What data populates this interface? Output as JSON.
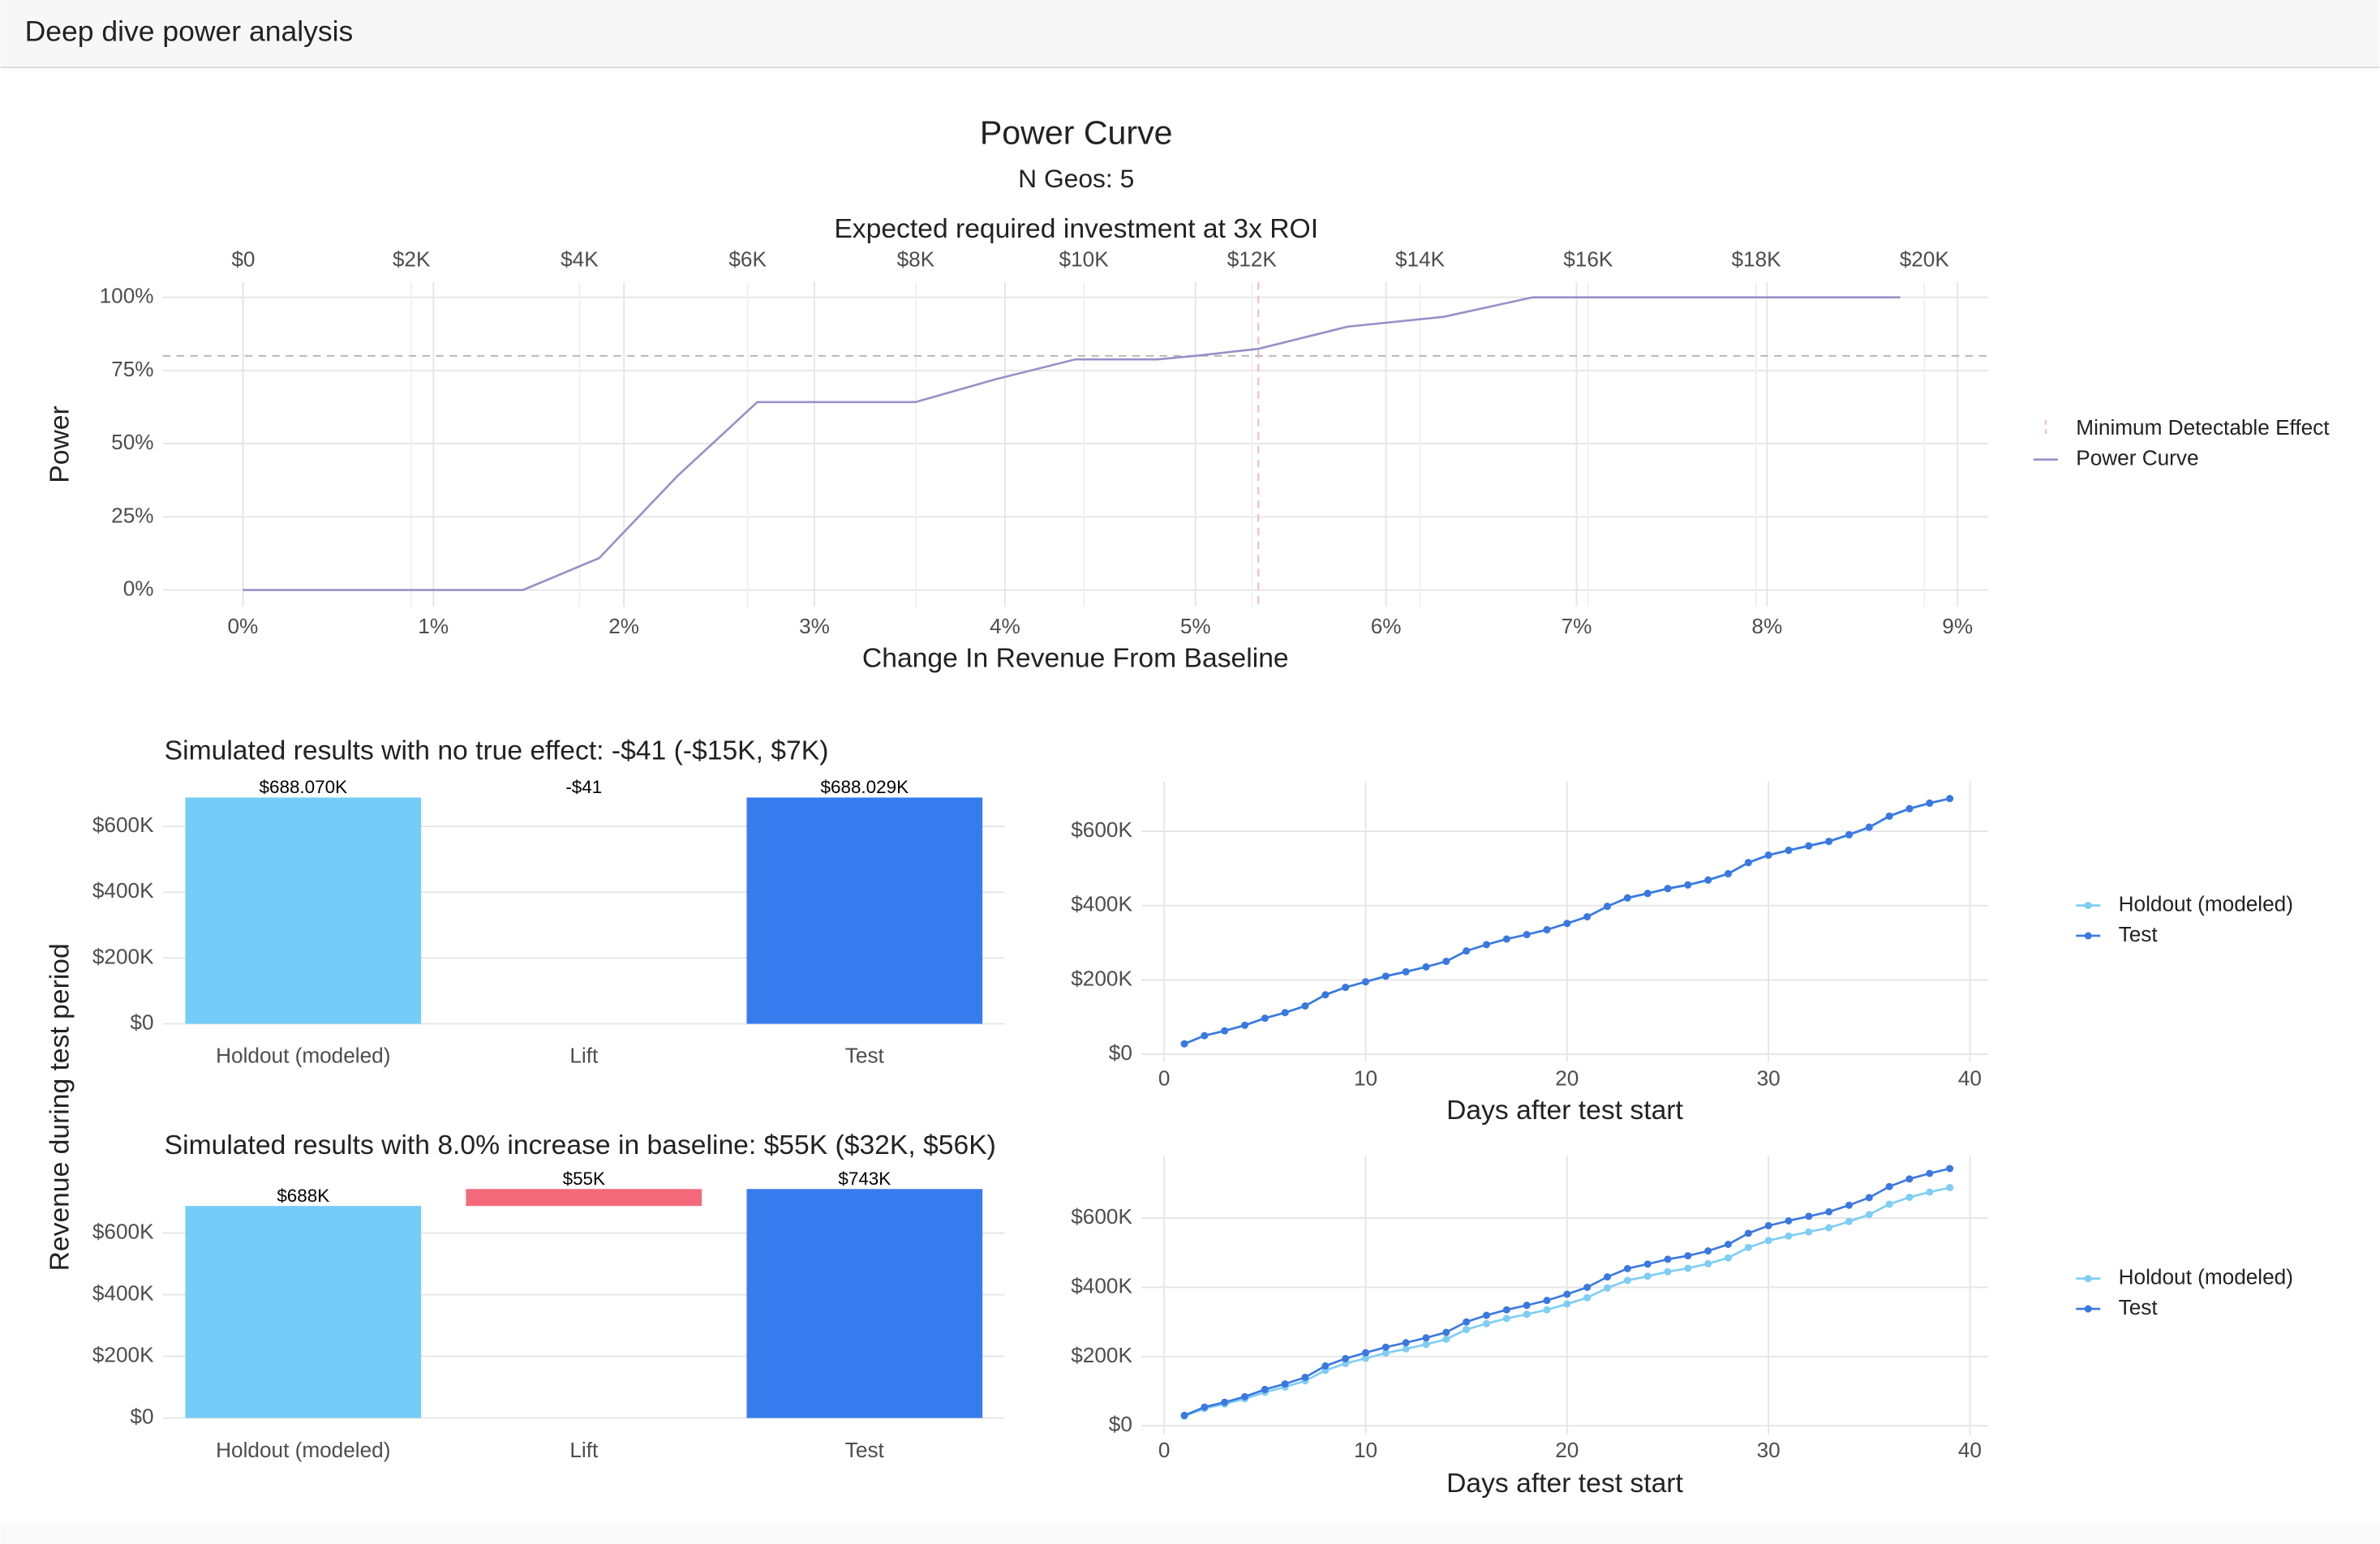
{
  "header": {
    "title": "Deep dive power analysis"
  },
  "chart_data": [
    {
      "type": "line",
      "title": "Power Curve",
      "subtitle": "N Geos: 5",
      "x2label": "Expected required investment at 3x ROI",
      "xlabel": "Change In Revenue From Baseline",
      "ylabel": "Power",
      "x": [
        0,
        1.47,
        1.87,
        2.28,
        2.7,
        3.53,
        3.95,
        4.37,
        4.8,
        5.0,
        5.33,
        5.8,
        6.3,
        6.77,
        8.7
      ],
      "series": [
        {
          "name": "Power Curve",
          "color": "#9890c8",
          "values": [
            0,
            0,
            10.9,
            38.9,
            64.2,
            64.2,
            72,
            78.8,
            78.8,
            80,
            82.4,
            90,
            93.3,
            100,
            100
          ]
        }
      ],
      "mde": {
        "name": "Minimum Detectable Effect",
        "value": 5.33,
        "color": "#f8b4b0"
      },
      "threshold": 80,
      "xlim": [
        -0.42,
        9.16
      ],
      "ylim": [
        -5.7,
        105.2
      ],
      "x2lim": [
        -957,
        20758
      ],
      "xticks": [
        {
          "value": 0,
          "label": "0%"
        },
        {
          "value": 1,
          "label": "1%"
        },
        {
          "value": 2,
          "label": "2%"
        },
        {
          "value": 3,
          "label": "3%"
        },
        {
          "value": 4,
          "label": "4%"
        },
        {
          "value": 5,
          "label": "5%"
        },
        {
          "value": 6,
          "label": "6%"
        },
        {
          "value": 7,
          "label": "7%"
        },
        {
          "value": 8,
          "label": "8%"
        },
        {
          "value": 9,
          "label": "9%"
        }
      ],
      "x2ticks": [
        {
          "value": 0,
          "label": "$0"
        },
        {
          "value": 2000,
          "label": "$2K"
        },
        {
          "value": 4000,
          "label": "$4K"
        },
        {
          "value": 6000,
          "label": "$6K"
        },
        {
          "value": 8000,
          "label": "$8K"
        },
        {
          "value": 10000,
          "label": "$10K"
        },
        {
          "value": 12000,
          "label": "$12K"
        },
        {
          "value": 14000,
          "label": "$14K"
        },
        {
          "value": 16000,
          "label": "$16K"
        },
        {
          "value": 18000,
          "label": "$18K"
        },
        {
          "value": 20000,
          "label": "$20K"
        }
      ],
      "yticks": [
        {
          "value": 0,
          "label": "0%"
        },
        {
          "value": 25,
          "label": "25%"
        },
        {
          "value": 50,
          "label": "50%"
        },
        {
          "value": 75,
          "label": "75%"
        },
        {
          "value": 100,
          "label": "100%"
        }
      ],
      "grid": true
    },
    {
      "type": "bar",
      "title": "Simulated results with no true effect: -$41 (-$15K, $7K)",
      "ylabel": "Revenue during test period",
      "categories": [
        "Holdout (modeled)",
        "Lift",
        "Test"
      ],
      "values": [
        688070,
        -41,
        688029
      ],
      "value_labels": [
        "$688.070K",
        "-$41",
        "$688.029K"
      ],
      "colors": [
        "#74cdf8",
        "#f4697a",
        "#367cef"
      ],
      "waterfall": true,
      "ylim": [
        -23000,
        738000
      ],
      "yticks": [
        {
          "value": 0,
          "label": "$0"
        },
        {
          "value": 200000,
          "label": "$200K"
        },
        {
          "value": 400000,
          "label": "$400K"
        },
        {
          "value": 600000,
          "label": "$600K"
        }
      ],
      "grid": true
    },
    {
      "type": "line",
      "xlabel": "Days after test start",
      "markers": true,
      "x": [
        1,
        2,
        3,
        4,
        5,
        6,
        7,
        8,
        9,
        10,
        11,
        12,
        13,
        14,
        15,
        16,
        17,
        18,
        19,
        20,
        21,
        22,
        23,
        24,
        25,
        26,
        27,
        28,
        29,
        30,
        31,
        32,
        33,
        34,
        35,
        36,
        37,
        38,
        39
      ],
      "series": [
        {
          "name": "Holdout (modeled)",
          "color": "#7dcdf5",
          "values": [
            28000,
            50000,
            63000,
            78000,
            97000,
            112000,
            130000,
            160000,
            180000,
            195000,
            210000,
            222000,
            235000,
            250000,
            278000,
            295000,
            310000,
            322000,
            335000,
            352000,
            370000,
            398000,
            420000,
            432000,
            445000,
            455000,
            468000,
            485000,
            515000,
            535000,
            548000,
            560000,
            572000,
            590000,
            610000,
            640000,
            660000,
            675000,
            688000
          ]
        },
        {
          "name": "Test",
          "color": "#3a78e0",
          "values": [
            28000,
            50000,
            63000,
            78000,
            97000,
            112000,
            130000,
            160000,
            180000,
            195000,
            210000,
            222000,
            235000,
            250000,
            278000,
            295000,
            310000,
            322000,
            335000,
            352000,
            370000,
            398000,
            421000,
            433000,
            446000,
            456000,
            469000,
            486000,
            516000,
            536000,
            549000,
            561000,
            573000,
            591000,
            611000,
            641000,
            661000,
            676000,
            688000
          ]
        }
      ],
      "xlim": [
        -1.13,
        40.9
      ],
      "ylim": [
        -20000,
        735000
      ],
      "xticks": [
        0,
        10,
        20,
        30,
        40
      ],
      "yticks": [
        {
          "value": 0,
          "label": "$0"
        },
        {
          "value": 200000,
          "label": "$200K"
        },
        {
          "value": 400000,
          "label": "$400K"
        },
        {
          "value": 600000,
          "label": "$600K"
        }
      ],
      "grid": true
    },
    {
      "type": "bar",
      "title": "Simulated results with 8.0% increase in baseline: $55K ($32K, $56K)",
      "categories": [
        "Holdout (modeled)",
        "Lift",
        "Test"
      ],
      "values": [
        688000,
        55000,
        743000
      ],
      "value_labels": [
        "$688K",
        "$55K",
        "$743K"
      ],
      "colors": [
        "#74cdf8",
        "#f4697a",
        "#367cef"
      ],
      "waterfall": true,
      "ylim": [
        -25000,
        787000
      ],
      "yticks": [
        {
          "value": 0,
          "label": "$0"
        },
        {
          "value": 200000,
          "label": "$200K"
        },
        {
          "value": 400000,
          "label": "$400K"
        },
        {
          "value": 600000,
          "label": "$600K"
        }
      ],
      "grid": true
    },
    {
      "type": "line",
      "xlabel": "Days after test start",
      "markers": true,
      "x": [
        1,
        2,
        3,
        4,
        5,
        6,
        7,
        8,
        9,
        10,
        11,
        12,
        13,
        14,
        15,
        16,
        17,
        18,
        19,
        20,
        21,
        22,
        23,
        24,
        25,
        26,
        27,
        28,
        29,
        30,
        31,
        32,
        33,
        34,
        35,
        36,
        37,
        38,
        39
      ],
      "series": [
        {
          "name": "Holdout (modeled)",
          "color": "#7dcdf5",
          "values": [
            28000,
            50000,
            63000,
            78000,
            97000,
            112000,
            130000,
            160000,
            180000,
            195000,
            210000,
            222000,
            235000,
            250000,
            278000,
            295000,
            310000,
            322000,
            335000,
            352000,
            370000,
            398000,
            420000,
            432000,
            445000,
            455000,
            468000,
            485000,
            515000,
            535000,
            548000,
            560000,
            572000,
            590000,
            610000,
            640000,
            660000,
            675000,
            688000
          ]
        },
        {
          "name": "Test",
          "color": "#3a78e0",
          "values": [
            30000,
            54000,
            68000,
            84000,
            105000,
            121000,
            140000,
            173000,
            194000,
            211000,
            227000,
            240000,
            254000,
            270000,
            300000,
            319000,
            335000,
            348000,
            362000,
            380000,
            400000,
            430000,
            454000,
            467000,
            481000,
            491000,
            505000,
            524000,
            556000,
            578000,
            592000,
            605000,
            618000,
            637000,
            659000,
            691000,
            713000,
            729000,
            743000
          ]
        }
      ],
      "xlim": [
        -1.13,
        40.9
      ],
      "ylim": [
        -26000,
        780000
      ],
      "xticks": [
        0,
        10,
        20,
        30,
        40
      ],
      "yticks": [
        {
          "value": 0,
          "label": "$0"
        },
        {
          "value": 200000,
          "label": "$200K"
        },
        {
          "value": 400000,
          "label": "$400K"
        },
        {
          "value": 600000,
          "label": "$600K"
        }
      ],
      "grid": true
    }
  ]
}
